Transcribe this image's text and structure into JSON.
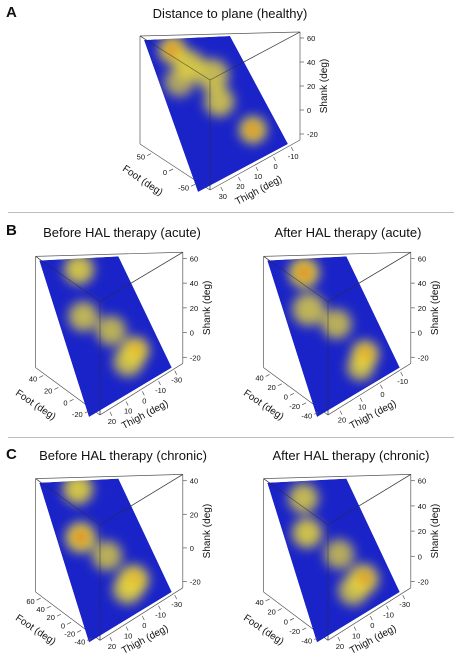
{
  "panels": [
    {
      "letter": "A",
      "plots": [
        {
          "title": "Distance to plane (healthy)",
          "zlabel": "Shank (deg)",
          "xlabel": "Foot (deg)",
          "ylabel": "Thigh (deg)",
          "ticks_z": [
            "60",
            "40",
            "20",
            "0",
            "-20"
          ],
          "ticks_foot": [
            "50",
            "0",
            "-50"
          ],
          "ticks_thigh": [
            "30",
            "20",
            "10",
            "0",
            "-10"
          ],
          "hotspots": [
            {
              "u": 0.28,
              "v": 0.08,
              "s": 0.09,
              "w": 1.0
            },
            {
              "u": 0.4,
              "v": 0.2,
              "s": 0.1,
              "w": 0.7
            },
            {
              "u": 0.6,
              "v": 0.3,
              "s": 0.11,
              "w": 0.6
            },
            {
              "u": 0.55,
              "v": 0.5,
              "s": 0.1,
              "w": 0.6
            },
            {
              "u": 0.75,
              "v": 0.78,
              "s": 0.09,
              "w": 0.95
            },
            {
              "u": 0.22,
              "v": 0.3,
              "s": 0.1,
              "w": 0.35
            }
          ]
        }
      ]
    },
    {
      "letter": "B",
      "plots": [
        {
          "title": "Before HAL therapy (acute)",
          "zlabel": "Shank (deg)",
          "xlabel": "Foot (deg)",
          "ylabel": "Thigh (deg)",
          "ticks_z": [
            "60",
            "40",
            "20",
            "0",
            "-20"
          ],
          "ticks_foot": [
            "40",
            "20",
            "0",
            "-20"
          ],
          "ticks_thigh": [
            "20",
            "10",
            "0",
            "-10",
            "-30"
          ],
          "hotspots": [
            {
              "u": 0.45,
              "v": 0.08,
              "s": 0.1,
              "w": 0.7
            },
            {
              "u": 0.3,
              "v": 0.4,
              "s": 0.1,
              "w": 0.55
            },
            {
              "u": 0.55,
              "v": 0.55,
              "s": 0.1,
              "w": 0.5
            },
            {
              "u": 0.72,
              "v": 0.75,
              "s": 0.09,
              "w": 1.0
            },
            {
              "u": 0.6,
              "v": 0.8,
              "s": 0.1,
              "w": 0.6
            }
          ]
        },
        {
          "title": "After HAL therapy (acute)",
          "zlabel": "Shank (deg)",
          "xlabel": "Foot (deg)",
          "ylabel": "Thigh (deg)",
          "ticks_z": [
            "60",
            "40",
            "20",
            "0",
            "-20"
          ],
          "ticks_foot": [
            "40",
            "20",
            "0",
            "-20",
            "-40"
          ],
          "ticks_thigh": [
            "20",
            "10",
            "0",
            "-10"
          ],
          "hotspots": [
            {
              "u": 0.4,
              "v": 0.1,
              "s": 0.1,
              "w": 0.95
            },
            {
              "u": 0.3,
              "v": 0.35,
              "s": 0.11,
              "w": 0.55
            },
            {
              "u": 0.55,
              "v": 0.5,
              "s": 0.1,
              "w": 0.5
            },
            {
              "u": 0.72,
              "v": 0.78,
              "s": 0.09,
              "w": 1.0
            },
            {
              "u": 0.62,
              "v": 0.85,
              "s": 0.09,
              "w": 0.6
            }
          ]
        }
      ]
    },
    {
      "letter": "C",
      "plots": [
        {
          "title": "Before HAL therapy (chronic)",
          "zlabel": "Shank (deg)",
          "xlabel": "Foot (deg)",
          "ylabel": "Thigh (deg)",
          "ticks_z": [
            "40",
            "20",
            "0",
            "-20"
          ],
          "ticks_foot": [
            "60",
            "40",
            "20",
            "0",
            "-20",
            "-40"
          ],
          "ticks_thigh": [
            "20",
            "10",
            "0",
            "-10",
            "-30"
          ],
          "hotspots": [
            {
              "u": 0.45,
              "v": 0.06,
              "s": 0.1,
              "w": 0.75
            },
            {
              "u": 0.28,
              "v": 0.38,
              "s": 0.1,
              "w": 0.95
            },
            {
              "u": 0.5,
              "v": 0.55,
              "s": 0.1,
              "w": 0.5
            },
            {
              "u": 0.68,
              "v": 0.78,
              "s": 0.1,
              "w": 0.9
            },
            {
              "u": 0.58,
              "v": 0.82,
              "s": 0.1,
              "w": 0.6
            }
          ]
        },
        {
          "title": "After HAL therapy (chronic)",
          "zlabel": "Shank (deg)",
          "xlabel": "Foot (deg)",
          "ylabel": "Thigh (deg)",
          "ticks_z": [
            "60",
            "40",
            "20",
            "0",
            "-20"
          ],
          "ticks_foot": [
            "40",
            "20",
            "0",
            "-20",
            "-40"
          ],
          "ticks_thigh": [
            "20",
            "10",
            "0",
            "-10",
            "-30"
          ],
          "hotspots": [
            {
              "u": 0.38,
              "v": 0.12,
              "s": 0.1,
              "w": 0.6
            },
            {
              "u": 0.28,
              "v": 0.35,
              "s": 0.1,
              "w": 0.7
            },
            {
              "u": 0.55,
              "v": 0.55,
              "s": 0.1,
              "w": 0.45
            },
            {
              "u": 0.7,
              "v": 0.78,
              "s": 0.1,
              "w": 0.85
            },
            {
              "u": 0.55,
              "v": 0.82,
              "s": 0.1,
              "w": 0.55
            }
          ]
        }
      ]
    }
  ],
  "colors": {
    "plane": "#1a23c8",
    "cold": "#1a23c8",
    "warm": "#e8d83a",
    "hot": "#d81c10",
    "box": "#555555"
  }
}
